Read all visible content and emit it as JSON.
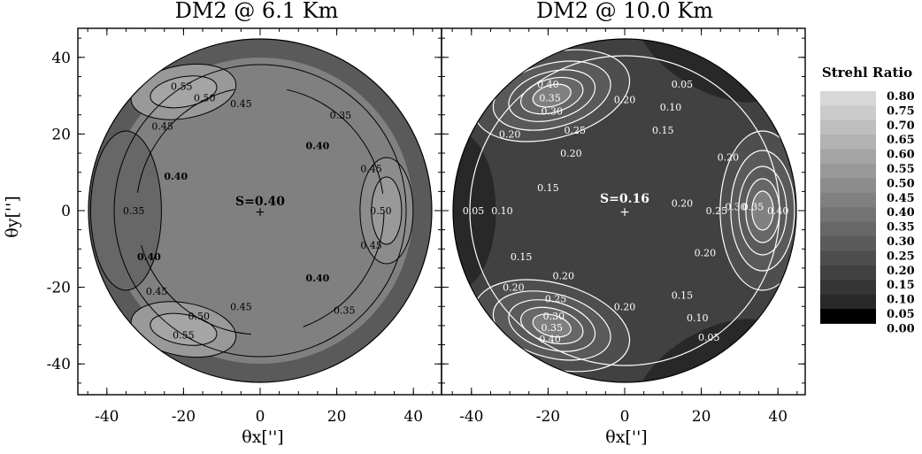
{
  "chart_data": {
    "type": "heatmap",
    "colorbar": {
      "title": "Strehl Ratio",
      "ticks": [
        "0.80",
        "0.75",
        "0.70",
        "0.65",
        "0.60",
        "0.55",
        "0.50",
        "0.45",
        "0.40",
        "0.35",
        "0.30",
        "0.25",
        "0.20",
        "0.15",
        "0.10",
        "0.05",
        "0.00"
      ],
      "range": [
        0.0,
        0.8
      ]
    },
    "axes": {
      "xlabel": "θx['']",
      "ylabel": "θy['']",
      "xlim": [
        -47,
        47
      ],
      "ylim": [
        -47,
        47
      ],
      "xticks": [
        "-40",
        "-20",
        "0",
        "20",
        "40"
      ],
      "yticks": [
        "40",
        "20",
        "0",
        "-20",
        "-40"
      ]
    },
    "panels": [
      {
        "title": "DM2 @  6.1 Km",
        "center_label": "S=0.40",
        "base_level": 0.4,
        "contour_color": "#000000",
        "contour_labels": [
          {
            "text": "0.55",
            "x": -20.5,
            "y": 32.5
          },
          {
            "text": "0.50",
            "x": -14.5,
            "y": 29.5
          },
          {
            "text": "0.45",
            "x": -5,
            "y": 28
          },
          {
            "text": "0.45",
            "x": -25.5,
            "y": 22
          },
          {
            "text": "0.35",
            "x": 21,
            "y": 25
          },
          {
            "text": "0.40",
            "x": 15,
            "y": 17
          },
          {
            "text": "0.40",
            "x": -22,
            "y": 9
          },
          {
            "text": "0.35",
            "x": -33,
            "y": 0
          },
          {
            "text": "0.45",
            "x": 29,
            "y": 11
          },
          {
            "text": "0.50",
            "x": 31.5,
            "y": 0
          },
          {
            "text": "0.45",
            "x": 29,
            "y": -9
          },
          {
            "text": "0.40",
            "x": -29,
            "y": -12
          },
          {
            "text": "0.45",
            "x": -27,
            "y": -21
          },
          {
            "text": "0.40",
            "x": 15,
            "y": -17.5
          },
          {
            "text": "0.50",
            "x": -16,
            "y": -27.5
          },
          {
            "text": "0.45",
            "x": -5,
            "y": -25
          },
          {
            "text": "0.35",
            "x": 22,
            "y": -26
          },
          {
            "text": "0.55",
            "x": -20,
            "y": -32.5
          }
        ]
      },
      {
        "title": "DM2 @ 10.0 Km",
        "center_label": "S=0.16",
        "base_level": 0.16,
        "contour_color": "#ffffff",
        "contour_labels": [
          {
            "text": "0.40",
            "x": -20,
            "y": 33
          },
          {
            "text": "0.35",
            "x": -19.5,
            "y": 29.5
          },
          {
            "text": "0.30",
            "x": -19,
            "y": 26
          },
          {
            "text": "0.25",
            "x": -13,
            "y": 21
          },
          {
            "text": "0.20",
            "x": 0,
            "y": 29
          },
          {
            "text": "0.20",
            "x": -30,
            "y": 20
          },
          {
            "text": "0.20",
            "x": -14,
            "y": 15
          },
          {
            "text": "0.05",
            "x": 15,
            "y": 33
          },
          {
            "text": "0.10",
            "x": 12,
            "y": 27
          },
          {
            "text": "0.15",
            "x": 10,
            "y": 21
          },
          {
            "text": "0.20",
            "x": 27,
            "y": 14
          },
          {
            "text": "0.15",
            "x": -20,
            "y": 6
          },
          {
            "text": "0.05",
            "x": -39.5,
            "y": 0
          },
          {
            "text": "0.10",
            "x": -32,
            "y": 0
          },
          {
            "text": "0.20",
            "x": 15,
            "y": 2
          },
          {
            "text": "0.25",
            "x": 24,
            "y": 0
          },
          {
            "text": "0.30",
            "x": 29,
            "y": 1
          },
          {
            "text": "0.35",
            "x": 33.5,
            "y": 1
          },
          {
            "text": "0.40",
            "x": 40,
            "y": 0
          },
          {
            "text": "0.20",
            "x": 21,
            "y": -11
          },
          {
            "text": "0.15",
            "x": -27,
            "y": -12
          },
          {
            "text": "0.20",
            "x": -29,
            "y": -20
          },
          {
            "text": "0.20",
            "x": -16,
            "y": -17
          },
          {
            "text": "0.25",
            "x": -18,
            "y": -23
          },
          {
            "text": "0.30",
            "x": -18.5,
            "y": -27.5
          },
          {
            "text": "0.35",
            "x": -19,
            "y": -30.5
          },
          {
            "text": "0.40",
            "x": -19.5,
            "y": -33.5
          },
          {
            "text": "0.20",
            "x": 0,
            "y": -25
          },
          {
            "text": "0.15",
            "x": 15,
            "y": -22
          },
          {
            "text": "0.10",
            "x": 19,
            "y": -28
          },
          {
            "text": "0.05",
            "x": 22,
            "y": -33
          }
        ]
      }
    ]
  }
}
